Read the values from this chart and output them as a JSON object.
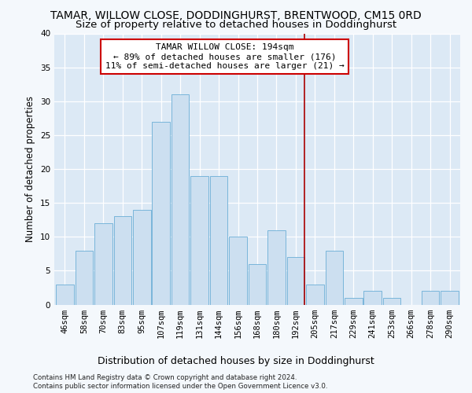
{
  "title": "TAMAR, WILLOW CLOSE, DODDINGHURST, BRENTWOOD, CM15 0RD",
  "subtitle": "Size of property relative to detached houses in Doddinghurst",
  "xlabel": "Distribution of detached houses by size in Doddinghurst",
  "ylabel": "Number of detached properties",
  "footnote1": "Contains HM Land Registry data © Crown copyright and database right 2024.",
  "footnote2": "Contains public sector information licensed under the Open Government Licence v3.0.",
  "bar_labels": [
    "46sqm",
    "58sqm",
    "70sqm",
    "83sqm",
    "95sqm",
    "107sqm",
    "119sqm",
    "131sqm",
    "144sqm",
    "156sqm",
    "168sqm",
    "180sqm",
    "192sqm",
    "205sqm",
    "217sqm",
    "229sqm",
    "241sqm",
    "253sqm",
    "266sqm",
    "278sqm",
    "290sqm"
  ],
  "bar_values": [
    3,
    8,
    12,
    13,
    14,
    27,
    31,
    19,
    19,
    10,
    6,
    11,
    7,
    3,
    8,
    1,
    2,
    1,
    0,
    2,
    2
  ],
  "bar_color": "#ccdff0",
  "bar_edgecolor": "#6aaed6",
  "vline_color": "#aa0000",
  "annotation_text": "TAMAR WILLOW CLOSE: 194sqm\n← 89% of detached houses are smaller (176)\n11% of semi-detached houses are larger (21) →",
  "annotation_box_color": "#cc0000",
  "ylim": [
    0,
    40
  ],
  "yticks": [
    0,
    5,
    10,
    15,
    20,
    25,
    30,
    35,
    40
  ],
  "plot_bg_color": "#dce9f5",
  "fig_bg_color": "#f4f8fc",
  "grid_color": "#ffffff",
  "title_fontsize": 10,
  "subtitle_fontsize": 9.5,
  "axis_label_fontsize": 9,
  "tick_fontsize": 7.5,
  "annot_fontsize": 8,
  "ylabel_fontsize": 8.5
}
